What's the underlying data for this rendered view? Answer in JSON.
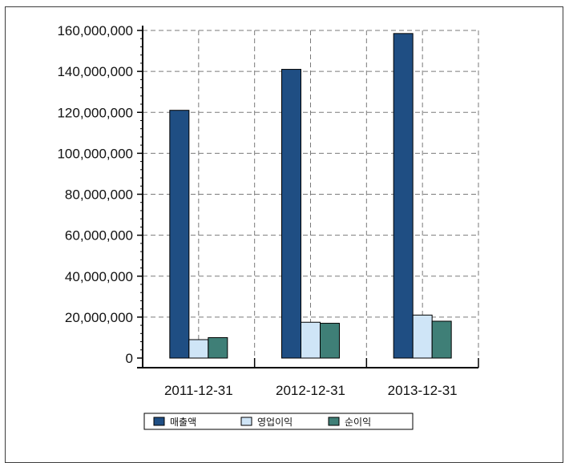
{
  "chart_data": {
    "type": "bar",
    "categories": [
      "2011-12-31",
      "2012-12-31",
      "2013-12-31"
    ],
    "series": [
      {
        "name": "매출액",
        "color": "#1f4e83",
        "values": [
          121000000,
          141000000,
          158500000
        ]
      },
      {
        "name": "영업이익",
        "color": "#cfe5f7",
        "values": [
          9000000,
          17500000,
          21000000
        ]
      },
      {
        "name": "순이익",
        "color": "#3f7f77",
        "values": [
          10000000,
          17000000,
          18000000
        ]
      }
    ],
    "y_tick_labels": [
      "0",
      "20,000,000",
      "40,000,000",
      "60,000,000",
      "80,000,000",
      "100,000,000",
      "120,000,000",
      "140,000,000",
      "160,000,000"
    ],
    "ylim": [
      0,
      160000000
    ],
    "title": "",
    "xlabel": "",
    "ylabel": "",
    "grid": true,
    "legend_position": "bottom"
  }
}
